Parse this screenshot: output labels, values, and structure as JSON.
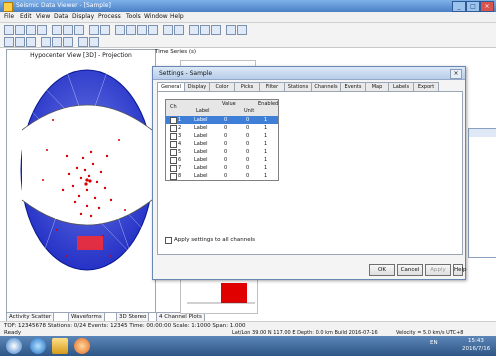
{
  "window": {
    "title": "Seismic Data Viewer - [Sample]",
    "controls": [
      "_",
      "□",
      "×"
    ]
  },
  "menu": [
    "File",
    "Edit",
    "View",
    "Data",
    "Display",
    "Process",
    "Tools",
    "Window",
    "Help"
  ],
  "left_panel": {
    "title": "Hypocenter View [3D] - Projection"
  },
  "bottom_tabs": [
    "Activity Scatter",
    "Waveforms",
    "3D Stereo",
    "4 Channel Plots"
  ],
  "status": {
    "line1": "TOF: 12345678   Stations: 0/24   Events: 12345   Time: 00:00:00   Scale: 1:1000   Span: 1.000",
    "line2": "Ready"
  },
  "footer": {
    "center": "Lat/Lon 39.00 N 117.00 E   Depth: 0.0 km   Build 2016-07-16",
    "right": "Velocity = 5.0 km/s   UTC+8"
  },
  "taskbar": {
    "clock_time": "15:43",
    "clock_date": "2016/7/16",
    "lang": "EN"
  },
  "top_right_label": "Time Series (s)",
  "dialog": {
    "title": "Settings - Sample",
    "tabs": [
      "General",
      "Display",
      "Color",
      "Picks",
      "Filter",
      "Stations",
      "Channels",
      "Events",
      "Map",
      "Labels",
      "Export"
    ],
    "active_tab": 0,
    "table": {
      "headers": [
        "Ch",
        "Label",
        "Value",
        "Unit",
        "Enabled"
      ],
      "rows": [
        {
          "id": "1",
          "label": "Label",
          "value": "0",
          "unit": "0",
          "enabled": "1",
          "selected": true
        },
        {
          "id": "2",
          "label": "Label",
          "value": "0",
          "unit": "0",
          "enabled": "1",
          "selected": false
        },
        {
          "id": "3",
          "label": "Label",
          "value": "0",
          "unit": "0",
          "enabled": "1",
          "selected": false
        },
        {
          "id": "4",
          "label": "Label",
          "value": "0",
          "unit": "0",
          "enabled": "1",
          "selected": false
        },
        {
          "id": "5",
          "label": "Label",
          "value": "0",
          "unit": "0",
          "enabled": "1",
          "selected": false
        },
        {
          "id": "6",
          "label": "Label",
          "value": "0",
          "unit": "0",
          "enabled": "1",
          "selected": false
        },
        {
          "id": "7",
          "label": "Label",
          "value": "0",
          "unit": "0",
          "enabled": "1",
          "selected": false
        },
        {
          "id": "8",
          "label": "Label",
          "value": "0",
          "unit": "0",
          "enabled": "1",
          "selected": false
        }
      ]
    },
    "checkbox_label": "Apply settings to all channels",
    "buttons": {
      "ok": "OK",
      "cancel": "Cancel",
      "apply": "Apply",
      "help": "Help"
    }
  }
}
